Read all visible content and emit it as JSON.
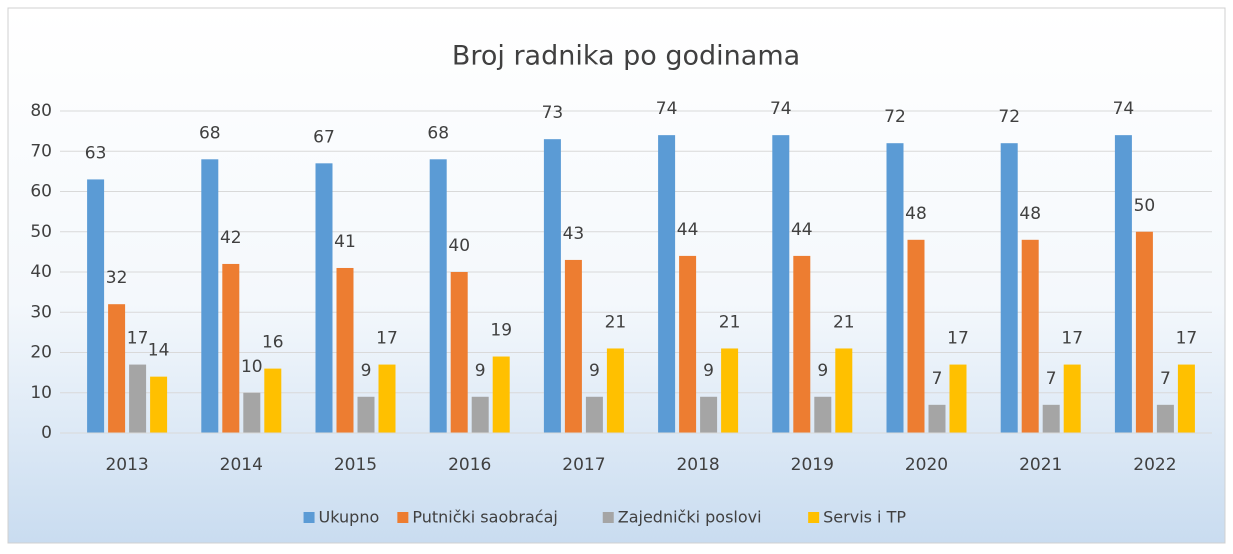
{
  "chart_data": {
    "type": "bar",
    "title": "Broj radnika po godinama",
    "categories": [
      "2013",
      "2014",
      "2015",
      "2016",
      "2017",
      "2018",
      "2019",
      "2020",
      "2021",
      "2022"
    ],
    "series": [
      {
        "name": "Ukupno",
        "color": "#5b9bd5",
        "values": [
          63,
          68,
          67,
          68,
          73,
          74,
          74,
          72,
          72,
          74
        ]
      },
      {
        "name": "Putnički saobraćaj",
        "color": "#ed7d31",
        "values": [
          32,
          42,
          41,
          40,
          43,
          44,
          44,
          48,
          48,
          50
        ]
      },
      {
        "name": "Zajednički poslovi",
        "color": "#a5a5a5",
        "values": [
          17,
          10,
          9,
          9,
          9,
          9,
          9,
          7,
          7,
          7
        ]
      },
      {
        "name": "Servis i TP",
        "color": "#ffc000",
        "values": [
          14,
          16,
          17,
          19,
          21,
          21,
          21,
          17,
          17,
          17
        ]
      }
    ],
    "ylim": [
      0,
      80
    ],
    "yticks": [
      0,
      10,
      20,
      30,
      40,
      50,
      60,
      70,
      80
    ],
    "grid": true,
    "legend": "bottom"
  }
}
